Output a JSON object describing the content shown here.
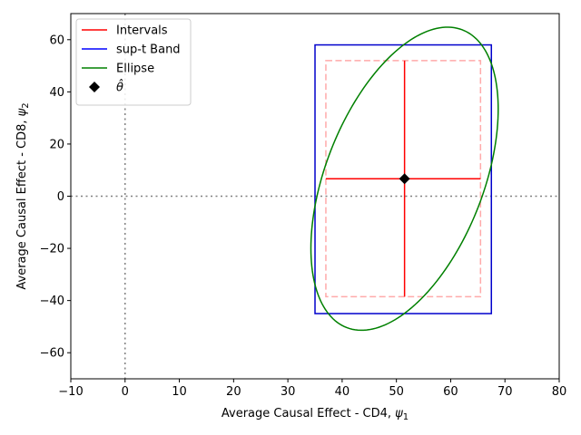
{
  "chart_data": {
    "type": "scatter",
    "title": "",
    "xlabel": "Average Causal Effect - CD4, ",
    "xlabel_symbol": "ψ",
    "xlabel_sub": "1",
    "ylabel": "Average Causal Effect - CD8, ",
    "ylabel_symbol": "ψ",
    "ylabel_sub": "2",
    "xlim": [
      -10,
      80
    ],
    "ylim": [
      -70,
      70
    ],
    "xticks": [
      -10,
      0,
      10,
      20,
      30,
      40,
      50,
      60,
      70,
      80
    ],
    "yticks": [
      -60,
      -40,
      -20,
      0,
      20,
      40,
      60
    ],
    "legend_position": "top-left",
    "legend": [
      {
        "label": "Intervals",
        "color": "#ff0000",
        "kind": "line"
      },
      {
        "label": "sup-t Band",
        "color": "#0000ff",
        "kind": "line"
      },
      {
        "label": "Ellipse",
        "color": "#008000",
        "kind": "line"
      },
      {
        "label": "θ̂",
        "color": "#000000",
        "kind": "diamond"
      }
    ],
    "reference_lines": {
      "x": 0,
      "y": 0,
      "color": "#808080"
    },
    "theta_hat": {
      "x": 51.5,
      "y": 6.7
    },
    "intervals": {
      "horizontal": {
        "x": [
          37,
          65.5
        ],
        "y": 6.7
      },
      "vertical": {
        "x": 51.5,
        "y": [
          -38.5,
          52
        ]
      },
      "color": "#ff0000"
    },
    "pointwise_box": {
      "x": [
        37,
        65.5
      ],
      "y": [
        -38.5,
        52
      ],
      "color": "#ffaaaa"
    },
    "sup_t_band": {
      "x": [
        35,
        67.5
      ],
      "y": [
        -45,
        58
      ],
      "color": "#0000cc"
    },
    "ellipse": {
      "center": [
        51.5,
        6.7
      ],
      "samples": [
        {
          "x": 55.5,
          "y": 63.2
        },
        {
          "x": 68.2,
          "y": 20
        },
        {
          "x": 47.2,
          "y": -49.8
        },
        {
          "x": 34.7,
          "y": -7
        }
      ],
      "color": "#008000"
    }
  }
}
